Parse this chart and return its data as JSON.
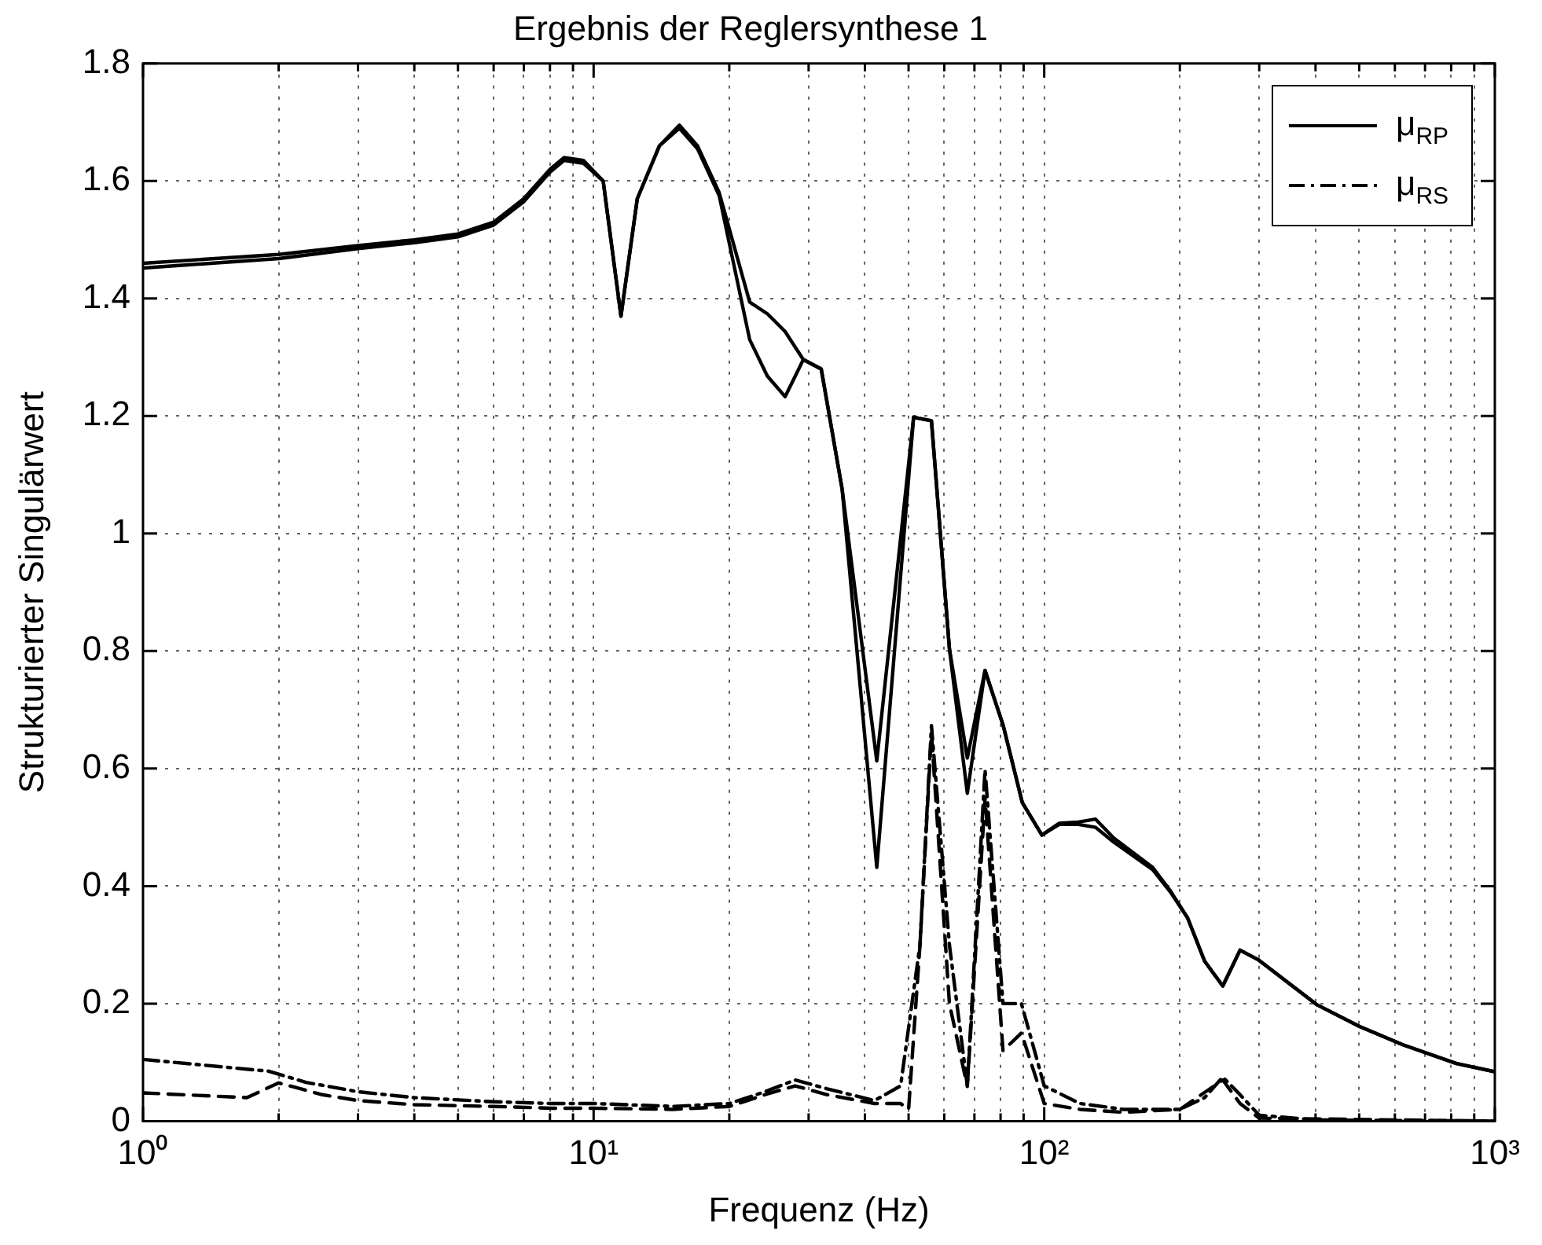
{
  "chart_data": {
    "type": "line",
    "title": "Ergebnis der Reglersynthese 1",
    "xlabel": "Frequenz (Hz)",
    "ylabel": "Strukturierter Singulärwert",
    "log": "x",
    "grid": true,
    "legend": "top right",
    "marker": "none",
    "xlim": [
      1,
      1000
    ],
    "ylim": [
      0,
      1.8
    ],
    "xticks": [
      {
        "value": 1,
        "label": "10⁰"
      },
      {
        "value": 2,
        "label": null
      },
      {
        "value": 3,
        "label": null
      },
      {
        "value": 4,
        "label": null
      },
      {
        "value": 5,
        "label": null
      },
      {
        "value": 6,
        "label": null
      },
      {
        "value": 7,
        "label": null
      },
      {
        "value": 8,
        "label": null
      },
      {
        "value": 9,
        "label": null
      },
      {
        "value": 10,
        "label": "10¹"
      },
      {
        "value": 20,
        "label": null
      },
      {
        "value": 30,
        "label": null
      },
      {
        "value": 40,
        "label": null
      },
      {
        "value": 50,
        "label": null
      },
      {
        "value": 60,
        "label": null
      },
      {
        "value": 70,
        "label": null
      },
      {
        "value": 80,
        "label": null
      },
      {
        "value": 90,
        "label": null
      },
      {
        "value": 100,
        "label": "10²"
      },
      {
        "value": 200,
        "label": null
      },
      {
        "value": 300,
        "label": null
      },
      {
        "value": 400,
        "label": null
      },
      {
        "value": 500,
        "label": null
      },
      {
        "value": 600,
        "label": null
      },
      {
        "value": 700,
        "label": null
      },
      {
        "value": 800,
        "label": null
      },
      {
        "value": 900,
        "label": null
      },
      {
        "value": 1000,
        "label": "10³"
      }
    ],
    "yticks": [
      0,
      0.2,
      0.4,
      0.6,
      0.8,
      1,
      1.2,
      1.4,
      1.6,
      1.8
    ],
    "series": [
      {
        "name": "μ$_{RP}$",
        "color": "#000000",
        "line_style": "solid",
        "x": [
          1,
          2,
          3,
          4,
          5,
          6,
          7,
          8,
          8.6,
          9.5,
          10.5,
          11.5,
          12.5,
          14,
          15.5,
          17,
          19,
          22.2,
          24.3,
          26.6,
          29.2,
          32,
          35.6,
          42.5,
          51.3,
          56.2,
          61.6,
          67.5,
          73.9,
          81.1,
          89.4,
          98.8,
          108,
          119,
          130,
          142.5,
          174,
          190.5,
          208,
          227,
          249,
          272,
          298,
          403,
          501,
          625,
          822,
          1000
        ],
        "values": [
          1.46,
          1.475,
          1.49,
          1.5,
          1.51,
          1.53,
          1.57,
          1.62,
          1.64,
          1.635,
          1.6,
          1.37,
          1.57,
          1.66,
          1.695,
          1.66,
          1.58,
          1.394,
          1.374,
          1.344,
          1.296,
          1.28,
          1.076,
          0.613,
          1.198,
          1.192,
          0.804,
          0.618,
          0.767,
          0.673,
          0.542,
          0.487,
          0.507,
          0.509,
          0.514,
          0.482,
          0.432,
          0.392,
          0.346,
          0.272,
          0.23,
          0.291,
          0.275,
          0.198,
          0.161,
          0.13,
          0.098,
          0.084
        ]
      },
      {
        "color": "#000000",
        "line_style": "solid",
        "x": [
          1,
          2,
          3,
          4,
          5,
          6,
          7,
          8,
          8.6,
          9.5,
          10.5,
          11.5,
          12.5,
          14,
          15.5,
          17,
          19,
          22.2,
          24.3,
          26.6,
          29.2,
          32,
          35.6,
          42.5,
          51.3,
          56.2,
          61.6,
          67.5,
          73.9,
          81.1,
          89.4,
          98.8,
          108,
          119,
          130,
          142.5,
          174,
          190.5,
          208,
          227,
          249,
          272,
          298,
          403,
          501,
          625,
          822,
          1000
        ],
        "values": [
          1.452,
          1.468,
          1.485,
          1.495,
          1.505,
          1.525,
          1.565,
          1.615,
          1.635,
          1.63,
          1.6,
          1.37,
          1.57,
          1.66,
          1.69,
          1.655,
          1.575,
          1.33,
          1.268,
          1.233,
          1.296,
          1.28,
          1.076,
          0.432,
          1.198,
          1.192,
          0.804,
          0.558,
          0.767,
          0.673,
          0.542,
          0.487,
          0.505,
          0.505,
          0.5,
          0.475,
          0.428,
          0.39,
          0.346,
          0.272,
          0.23,
          0.291,
          0.275,
          0.198,
          0.161,
          0.13,
          0.098,
          0.084
        ]
      },
      {
        "name": "μ$_{RS}$",
        "color": "#000000",
        "line_style": "dashdot",
        "x": [
          1,
          1.9,
          2.3,
          3,
          4,
          6,
          8,
          10,
          15,
          20,
          24,
          28,
          33,
          42,
          48,
          53,
          56.2,
          61.6,
          67.5,
          73.9,
          81,
          89,
          100,
          120,
          150,
          200,
          227,
          249,
          272,
          300,
          400,
          1000
        ],
        "values": [
          0.105,
          0.085,
          0.066,
          0.05,
          0.04,
          0.033,
          0.03,
          0.03,
          0.025,
          0.03,
          0.05,
          0.07,
          0.055,
          0.035,
          0.06,
          0.3,
          0.673,
          0.3,
          0.06,
          0.598,
          0.2,
          0.2,
          0.06,
          0.03,
          0.02,
          0.02,
          0.04,
          0.075,
          0.045,
          0.01,
          0.002,
          0
        ]
      },
      {
        "color": "#000000",
        "line_style": "dashed",
        "x": [
          1,
          1.7,
          2,
          2.5,
          3,
          4,
          6,
          8,
          10,
          15,
          20,
          24,
          28,
          33,
          42,
          48,
          50,
          53,
          56.2,
          61.6,
          67.5,
          73.9,
          81,
          89,
          100,
          120,
          150,
          200,
          249,
          272,
          300,
          1000
        ],
        "values": [
          0.048,
          0.04,
          0.065,
          0.045,
          0.035,
          0.028,
          0.025,
          0.022,
          0.022,
          0.02,
          0.025,
          0.045,
          0.06,
          0.045,
          0.03,
          0.03,
          0.02,
          0.3,
          0.66,
          0.2,
          0.059,
          0.55,
          0.12,
          0.15,
          0.03,
          0.02,
          0.015,
          0.02,
          0.07,
          0.03,
          0.005,
          0
        ]
      }
    ]
  }
}
